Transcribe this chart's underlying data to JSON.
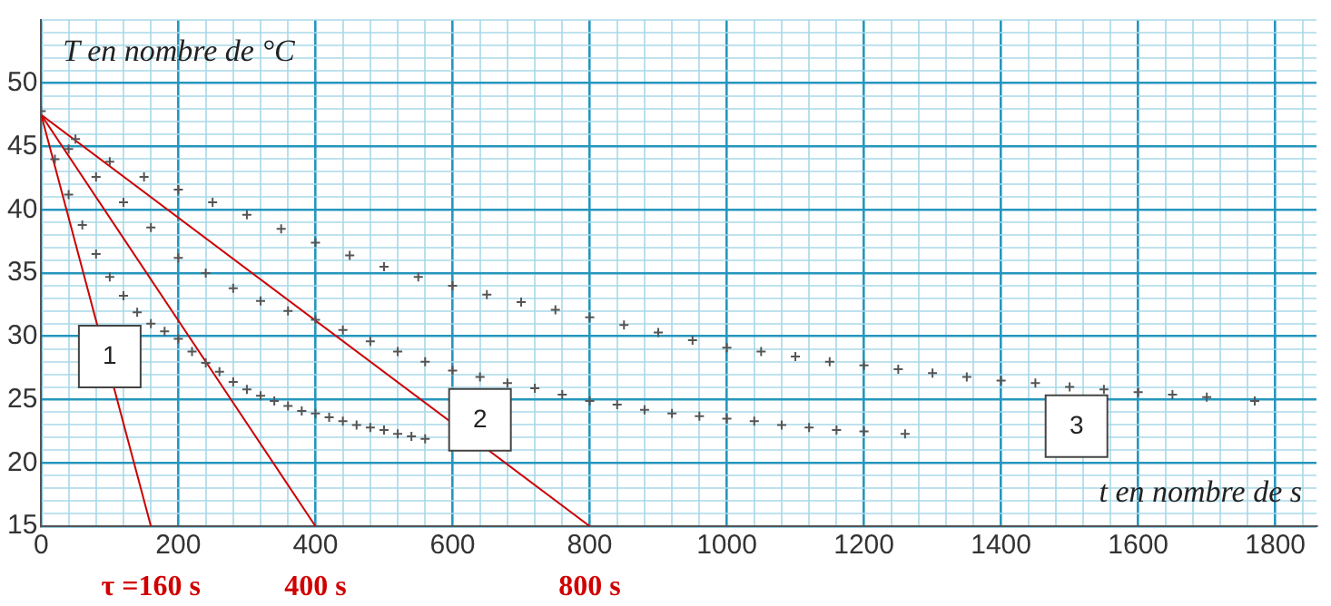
{
  "chart_data": {
    "type": "scatter",
    "xlabel": "t en nombre de s",
    "ylabel": "T en nombre de °C",
    "xlim": [
      0,
      1860
    ],
    "ylim": [
      15,
      55
    ],
    "xticks": [
      0,
      {
        "value": 40,
        "label": null
      },
      {
        "value": 80,
        "label": null
      },
      {
        "value": 120,
        "label": null
      },
      {
        "value": 160,
        "label": null
      },
      200,
      {
        "value": 240,
        "label": null
      },
      {
        "value": 280,
        "label": null
      },
      {
        "value": 320,
        "label": null
      },
      {
        "value": 360,
        "label": null
      },
      400,
      {
        "value": 440,
        "label": null
      },
      {
        "value": 480,
        "label": null
      },
      {
        "value": 520,
        "label": null
      },
      {
        "value": 560,
        "label": null
      },
      600,
      {
        "value": 640,
        "label": null
      },
      {
        "value": 680,
        "label": null
      },
      {
        "value": 720,
        "label": null
      },
      {
        "value": 760,
        "label": null
      },
      800,
      {
        "value": 840,
        "label": null
      },
      {
        "value": 880,
        "label": null
      },
      {
        "value": 920,
        "label": null
      },
      {
        "value": 960,
        "label": null
      },
      1000,
      {
        "value": 1040,
        "label": null
      },
      {
        "value": 1080,
        "label": null
      },
      {
        "value": 1120,
        "label": null
      },
      {
        "value": 1160,
        "label": null
      },
      1200,
      {
        "value": 1240,
        "label": null
      },
      {
        "value": 1280,
        "label": null
      },
      {
        "value": 1320,
        "label": null
      },
      {
        "value": 1360,
        "label": null
      },
      1400,
      {
        "value": 1440,
        "label": null
      },
      {
        "value": 1480,
        "label": null
      },
      {
        "value": 1520,
        "label": null
      },
      {
        "value": 1560,
        "label": null
      },
      1600,
      {
        "value": 1640,
        "label": null
      },
      {
        "value": 1680,
        "label": null
      },
      {
        "value": 1720,
        "label": null
      },
      {
        "value": 1760,
        "label": null
      },
      1800,
      {
        "value": 1840,
        "label": null
      }
    ],
    "yticks": [
      15,
      {
        "value": 16,
        "label": null
      },
      {
        "value": 17,
        "label": null
      },
      {
        "value": 18,
        "label": null
      },
      {
        "value": 19,
        "label": null
      },
      20,
      {
        "value": 21,
        "label": null
      },
      {
        "value": 22,
        "label": null
      },
      {
        "value": 23,
        "label": null
      },
      {
        "value": 24,
        "label": null
      },
      25,
      {
        "value": 26,
        "label": null
      },
      {
        "value": 27,
        "label": null
      },
      {
        "value": 28,
        "label": null
      },
      {
        "value": 29,
        "label": null
      },
      30,
      {
        "value": 31,
        "label": null
      },
      {
        "value": 32,
        "label": null
      },
      {
        "value": 33,
        "label": null
      },
      {
        "value": 34,
        "label": null
      },
      35,
      {
        "value": 36,
        "label": null
      },
      {
        "value": 37,
        "label": null
      },
      {
        "value": 38,
        "label": null
      },
      {
        "value": 39,
        "label": null
      },
      40,
      {
        "value": 41,
        "label": null
      },
      {
        "value": 42,
        "label": null
      },
      {
        "value": 43,
        "label": null
      },
      {
        "value": 44,
        "label": null
      },
      45,
      {
        "value": 46,
        "label": null
      },
      {
        "value": 47,
        "label": null
      },
      {
        "value": 48,
        "label": null
      },
      {
        "value": 49,
        "label": null
      },
      50,
      {
        "value": 51,
        "label": null
      },
      {
        "value": 52,
        "label": null
      },
      {
        "value": 53,
        "label": null
      },
      {
        "value": 54,
        "label": null
      },
      {
        "value": 55,
        "label": null
      }
    ],
    "grid": true,
    "legend": false,
    "marker": "cross",
    "series": [
      {
        "color": "#555555",
        "x": [
          20,
          40,
          60,
          80,
          100,
          120,
          140,
          160,
          180,
          200,
          220,
          240,
          260,
          280,
          300,
          320,
          340,
          360,
          380,
          400,
          420,
          440,
          460,
          480,
          500,
          520,
          540,
          560
        ],
        "values": [
          44,
          41.2,
          38.8,
          36.5,
          34.7,
          33.2,
          31.9,
          31,
          30.4,
          29.8,
          28.8,
          27.9,
          27.2,
          26.4,
          25.8,
          25.3,
          24.9,
          24.5,
          24.1,
          23.9,
          23.6,
          23.3,
          23,
          22.8,
          22.6,
          22.3,
          22.1,
          21.9
        ]
      },
      {
        "color": "#555555",
        "x": [
          40,
          80,
          120,
          160,
          200,
          240,
          280,
          320,
          360,
          400,
          440,
          480,
          520,
          560,
          600,
          640,
          680,
          720,
          760,
          800,
          840,
          880,
          920,
          960,
          1000,
          1040,
          1080,
          1120,
          1160,
          1200,
          1260
        ],
        "values": [
          44.8,
          42.6,
          40.6,
          38.6,
          36.2,
          35,
          33.8,
          32.8,
          32,
          31.3,
          30.5,
          29.6,
          28.8,
          28,
          27.3,
          26.8,
          26.3,
          25.9,
          25.4,
          24.9,
          24.6,
          24.2,
          23.9,
          23.7,
          23.5,
          23.3,
          23,
          22.8,
          22.6,
          22.5,
          22.3
        ]
      },
      {
        "color": "#555555",
        "x": [
          0,
          50,
          100,
          150,
          200,
          250,
          300,
          350,
          400,
          450,
          500,
          550,
          600,
          650,
          700,
          750,
          800,
          850,
          900,
          950,
          1000,
          1050,
          1100,
          1150,
          1200,
          1250,
          1300,
          1350,
          1400,
          1450,
          1500,
          1550,
          1600,
          1650,
          1700,
          1770
        ],
        "values": [
          47.8,
          45.6,
          43.8,
          42.6,
          41.6,
          40.6,
          39.6,
          38.5,
          37.4,
          36.4,
          35.5,
          34.7,
          34,
          33.3,
          32.7,
          32.1,
          31.5,
          30.9,
          30.3,
          29.7,
          29.1,
          28.8,
          28.4,
          28,
          27.7,
          27.4,
          27.1,
          26.8,
          26.5,
          26.3,
          26,
          25.8,
          25.6,
          25.4,
          25.2,
          24.9
        ]
      },
      {
        "type": "line",
        "color": "#cc0000",
        "line_style": "solid",
        "marker": "none",
        "x": [
          0,
          160
        ],
        "values": [
          47.5,
          15
        ]
      },
      {
        "type": "line",
        "color": "#cc0000",
        "line_style": "solid",
        "marker": "none",
        "x": [
          0,
          400
        ],
        "values": [
          47.5,
          15
        ]
      },
      {
        "type": "line",
        "color": "#cc0000",
        "line_style": "solid",
        "marker": "none",
        "x": [
          0,
          800
        ],
        "values": [
          47.5,
          15
        ]
      }
    ],
    "annotations": [
      {
        "text": "1",
        "x": 100,
        "y": 28.4
      },
      {
        "text": "2",
        "x": 640,
        "y": 23.4
      },
      {
        "text": "3",
        "x": 1510,
        "y": 22.9
      },
      {
        "text": "τ =160 s",
        "x": 160,
        "y": 15
      },
      {
        "text": "400 s",
        "x": 400,
        "y": 15
      },
      {
        "text": "800 s",
        "x": 800,
        "y": 15
      }
    ]
  }
}
